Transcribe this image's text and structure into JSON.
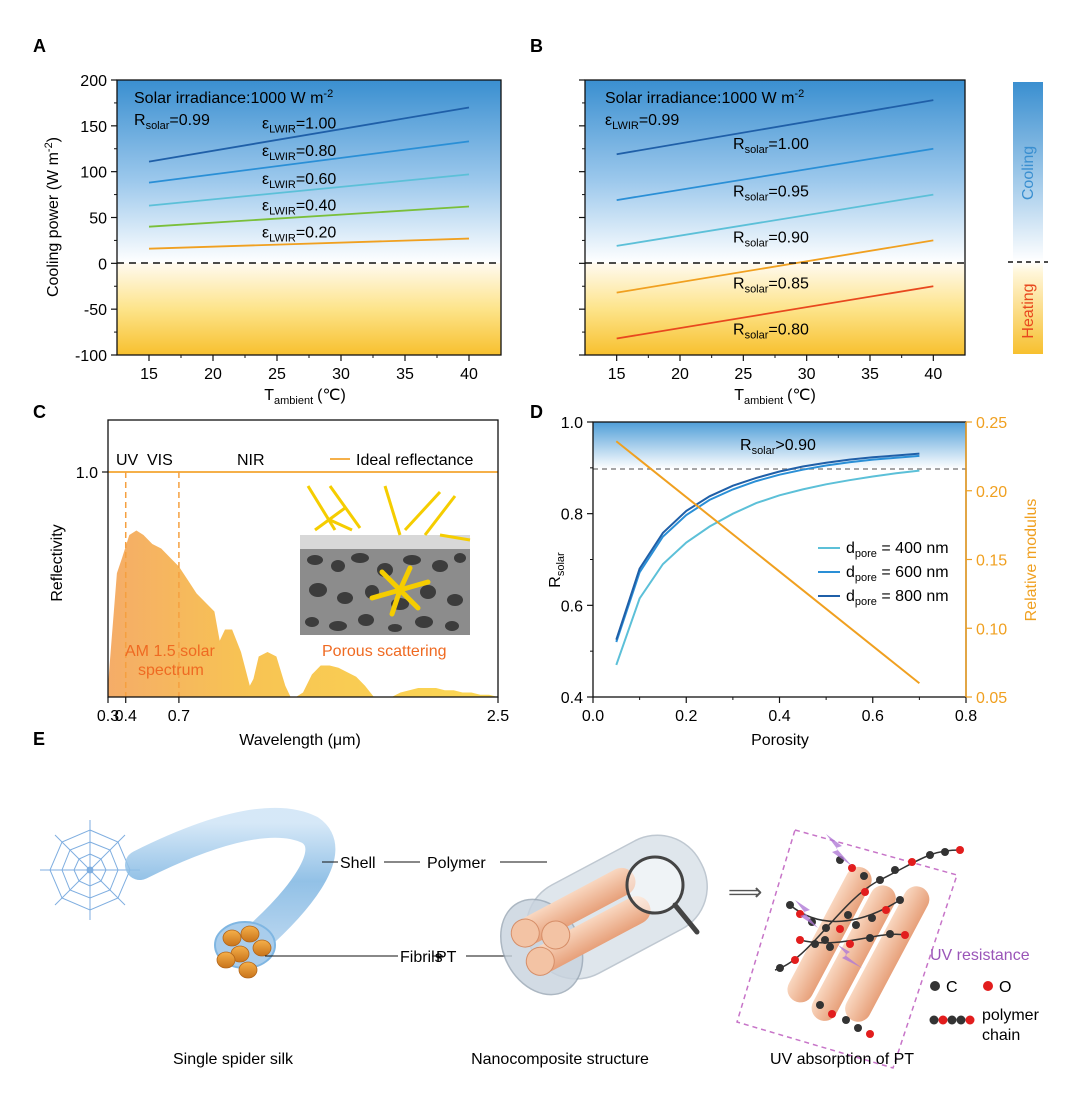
{
  "colors": {
    "cool_top": "#3a8fd0",
    "heat_bottom": "#f7c02e",
    "orange": "#f0a020",
    "orange_text": "#ef6a22",
    "purple": "#9a55b8",
    "navy": "#1f5fa8",
    "mid_blue": "#2a8fd6",
    "light_blue": "#5cc0d8",
    "green": "#7abf3a",
    "red_orange": "#e8481e"
  },
  "panels": {
    "a": {
      "label": "A",
      "annotation_line1": "Solar irradiance:1000 W m",
      "annotation_line1_sup": "-2",
      "annotation_line2": "R",
      "annotation_line2_sub": "solar",
      "annotation_line2_value": "=0.99"
    },
    "b": {
      "label": "B",
      "annotation_line1": "Solar irradiance:1000 W m",
      "annotation_line1_sup": "-2",
      "annotation_line2": "ε",
      "annotation_line2_sub": "LWIR",
      "annotation_line2_value": "=0.99"
    },
    "c": {
      "label": "C",
      "band_uv": "UV",
      "band_vis": "VIS",
      "band_nir": "NIR",
      "legend": "Ideal reflectance",
      "solar_label_1": "AM 1.5 solar",
      "solar_label_2": "spectrum",
      "porous_label": "Porous scattering"
    },
    "d": {
      "label": "D",
      "threshold_label": "R",
      "threshold_sub": "solar",
      "threshold_value": ">0.90"
    },
    "e": {
      "label": "E",
      "shell": "Shell",
      "polymer": "Polymer",
      "fibrils": "Fibrils",
      "pt": "PT",
      "arrow": "⟹",
      "uv_resistance": "UV resistance",
      "legend_c": "C",
      "legend_o": "O",
      "legend_chain_1": "polymer",
      "legend_chain_2": "chain",
      "caption_1": "Single spider silk",
      "caption_2": "Nanocomposite structure",
      "caption_3": "UV absorption of PT"
    }
  },
  "side_bar": {
    "cooling": "Cooling",
    "heating": "Heating"
  },
  "chart_data": [
    {
      "id": "A",
      "type": "line",
      "title": "",
      "xlabel": "T",
      "xlabel_sub": "ambient",
      "xlabel_unit": "(℃)",
      "ylabel": "Cooling power (W m",
      "ylabel_sup": "-2",
      "ylabel_end": ")",
      "xlim": [
        12.5,
        42.5
      ],
      "ylim": [
        -100,
        200
      ],
      "xticks": [
        15,
        20,
        25,
        30,
        35,
        40
      ],
      "yticks": [
        -100,
        -50,
        0,
        50,
        100,
        150,
        200
      ],
      "reference_line": 0,
      "x": [
        15,
        40
      ],
      "series": [
        {
          "name": "ε",
          "sub": "LWIR",
          "value": "=1.00",
          "values": [
            111,
            170
          ],
          "color": "#1f5fa8"
        },
        {
          "name": "ε",
          "sub": "LWIR",
          "value": "=0.80",
          "values": [
            88,
            133
          ],
          "color": "#2a8fd6"
        },
        {
          "name": "ε",
          "sub": "LWIR",
          "value": "=0.60",
          "values": [
            63,
            97
          ],
          "color": "#5cc0d8"
        },
        {
          "name": "ε",
          "sub": "LWIR",
          "value": "=0.40",
          "values": [
            40,
            62
          ],
          "color": "#7abf3a"
        },
        {
          "name": "ε",
          "sub": "LWIR",
          "value": "=0.20",
          "values": [
            16,
            27
          ],
          "color": "#f0a020"
        }
      ]
    },
    {
      "id": "B",
      "type": "line",
      "title": "",
      "xlabel": "T",
      "xlabel_sub": "ambient",
      "xlabel_unit": "(℃)",
      "xlim": [
        12.5,
        42.5
      ],
      "ylim": [
        -100,
        200
      ],
      "xticks": [
        15,
        20,
        25,
        30,
        35,
        40
      ],
      "yticks": [
        -100,
        -50,
        0,
        50,
        100,
        150,
        200
      ],
      "reference_line": 0,
      "x": [
        15,
        40
      ],
      "series": [
        {
          "name": "R",
          "sub": "solar",
          "value": "=1.00",
          "values": [
            119,
            178
          ],
          "color": "#1f5fa8"
        },
        {
          "name": "R",
          "sub": "solar",
          "value": "=0.95",
          "values": [
            69,
            125
          ],
          "color": "#2a8fd6"
        },
        {
          "name": "R",
          "sub": "solar",
          "value": "=0.90",
          "values": [
            19,
            75
          ],
          "color": "#5cc0d8"
        },
        {
          "name": "R",
          "sub": "solar",
          "value": "=0.85",
          "values": [
            -32,
            25
          ],
          "color": "#f0a020"
        },
        {
          "name": "R",
          "sub": "solar",
          "value": "=0.80",
          "values": [
            -82,
            -25
          ],
          "color": "#e8481e"
        }
      ]
    },
    {
      "id": "C",
      "type": "area",
      "title": "",
      "xlabel": "Wavelength (μm)",
      "ylabel": "Reflectivity",
      "xticks": [
        0.3,
        0.4,
        0.7,
        2.5
      ],
      "xtick_labels": [
        "0.3",
        "0.4",
        "0.7",
        "2.5"
      ],
      "yticks": [
        1.0
      ],
      "ytick_labels": [
        "1.0"
      ],
      "xlim": [
        0.3,
        2.5
      ],
      "ideal_reflectance": 1.0,
      "band_edges": [
        0.4,
        0.7
      ],
      "spectrum_x": [
        0.3,
        0.32,
        0.35,
        0.38,
        0.42,
        0.46,
        0.5,
        0.55,
        0.6,
        0.65,
        0.7,
        0.75,
        0.8,
        0.85,
        0.9,
        0.93,
        0.96,
        1.0,
        1.05,
        1.1,
        1.12,
        1.15,
        1.2,
        1.25,
        1.3,
        1.33,
        1.36,
        1.4,
        1.45,
        1.5,
        1.55,
        1.6,
        1.65,
        1.7,
        1.75,
        1.8,
        1.85,
        1.9,
        1.95,
        2.0,
        2.05,
        2.1,
        2.15,
        2.2,
        2.25,
        2.3,
        2.35,
        2.4,
        2.45,
        2.5
      ],
      "spectrum_y": [
        0.05,
        0.25,
        0.55,
        0.62,
        0.72,
        0.74,
        0.72,
        0.68,
        0.66,
        0.62,
        0.58,
        0.52,
        0.46,
        0.42,
        0.38,
        0.25,
        0.3,
        0.3,
        0.2,
        0.05,
        0.08,
        0.18,
        0.2,
        0.18,
        0.05,
        0.0,
        0.0,
        0.02,
        0.1,
        0.14,
        0.14,
        0.13,
        0.11,
        0.09,
        0.05,
        0.0,
        0.0,
        0.0,
        0.02,
        0.03,
        0.04,
        0.04,
        0.04,
        0.03,
        0.03,
        0.02,
        0.02,
        0.01,
        0.01,
        0.0
      ]
    },
    {
      "id": "D",
      "type": "line",
      "title": "",
      "xlabel": "Porosity",
      "ylabel": "R",
      "ylabel_sub": "solar",
      "y2label": "Relative modulus",
      "xlim": [
        0.0,
        0.8
      ],
      "ylim": [
        0.4,
        1.0
      ],
      "y2lim": [
        0.05,
        0.25
      ],
      "xticks": [
        0.0,
        0.2,
        0.4,
        0.6,
        0.8
      ],
      "yticks": [
        0.4,
        0.6,
        0.8,
        1.0
      ],
      "y2ticks": [
        0.05,
        0.1,
        0.15,
        0.2,
        0.25
      ],
      "threshold": 0.9,
      "x": [
        0.05,
        0.1,
        0.15,
        0.2,
        0.25,
        0.3,
        0.35,
        0.4,
        0.45,
        0.5,
        0.55,
        0.6,
        0.65,
        0.7
      ],
      "series": [
        {
          "name": "d",
          "sub": "pore",
          "value": " = 400 nm",
          "color": "#5cc0d8",
          "values": [
            0.47,
            0.615,
            0.69,
            0.737,
            0.772,
            0.8,
            0.823,
            0.84,
            0.853,
            0.864,
            0.873,
            0.881,
            0.888,
            0.894
          ]
        },
        {
          "name": "d",
          "sub": "pore",
          "value": " = 600 nm",
          "color": "#2a8fd6",
          "values": [
            0.52,
            0.672,
            0.75,
            0.797,
            0.83,
            0.853,
            0.871,
            0.885,
            0.896,
            0.905,
            0.912,
            0.918,
            0.922,
            0.926
          ]
        },
        {
          "name": "d",
          "sub": "pore",
          "value": " = 800 nm",
          "color": "#1f5fa8",
          "values": [
            0.525,
            0.68,
            0.758,
            0.806,
            0.838,
            0.861,
            0.878,
            0.892,
            0.903,
            0.911,
            0.918,
            0.923,
            0.927,
            0.931
          ]
        }
      ],
      "modulus": {
        "name": "Relative modulus",
        "color": "#f0a020",
        "x": [
          0.05,
          0.7
        ],
        "values": [
          0.236,
          0.06
        ]
      }
    }
  ]
}
